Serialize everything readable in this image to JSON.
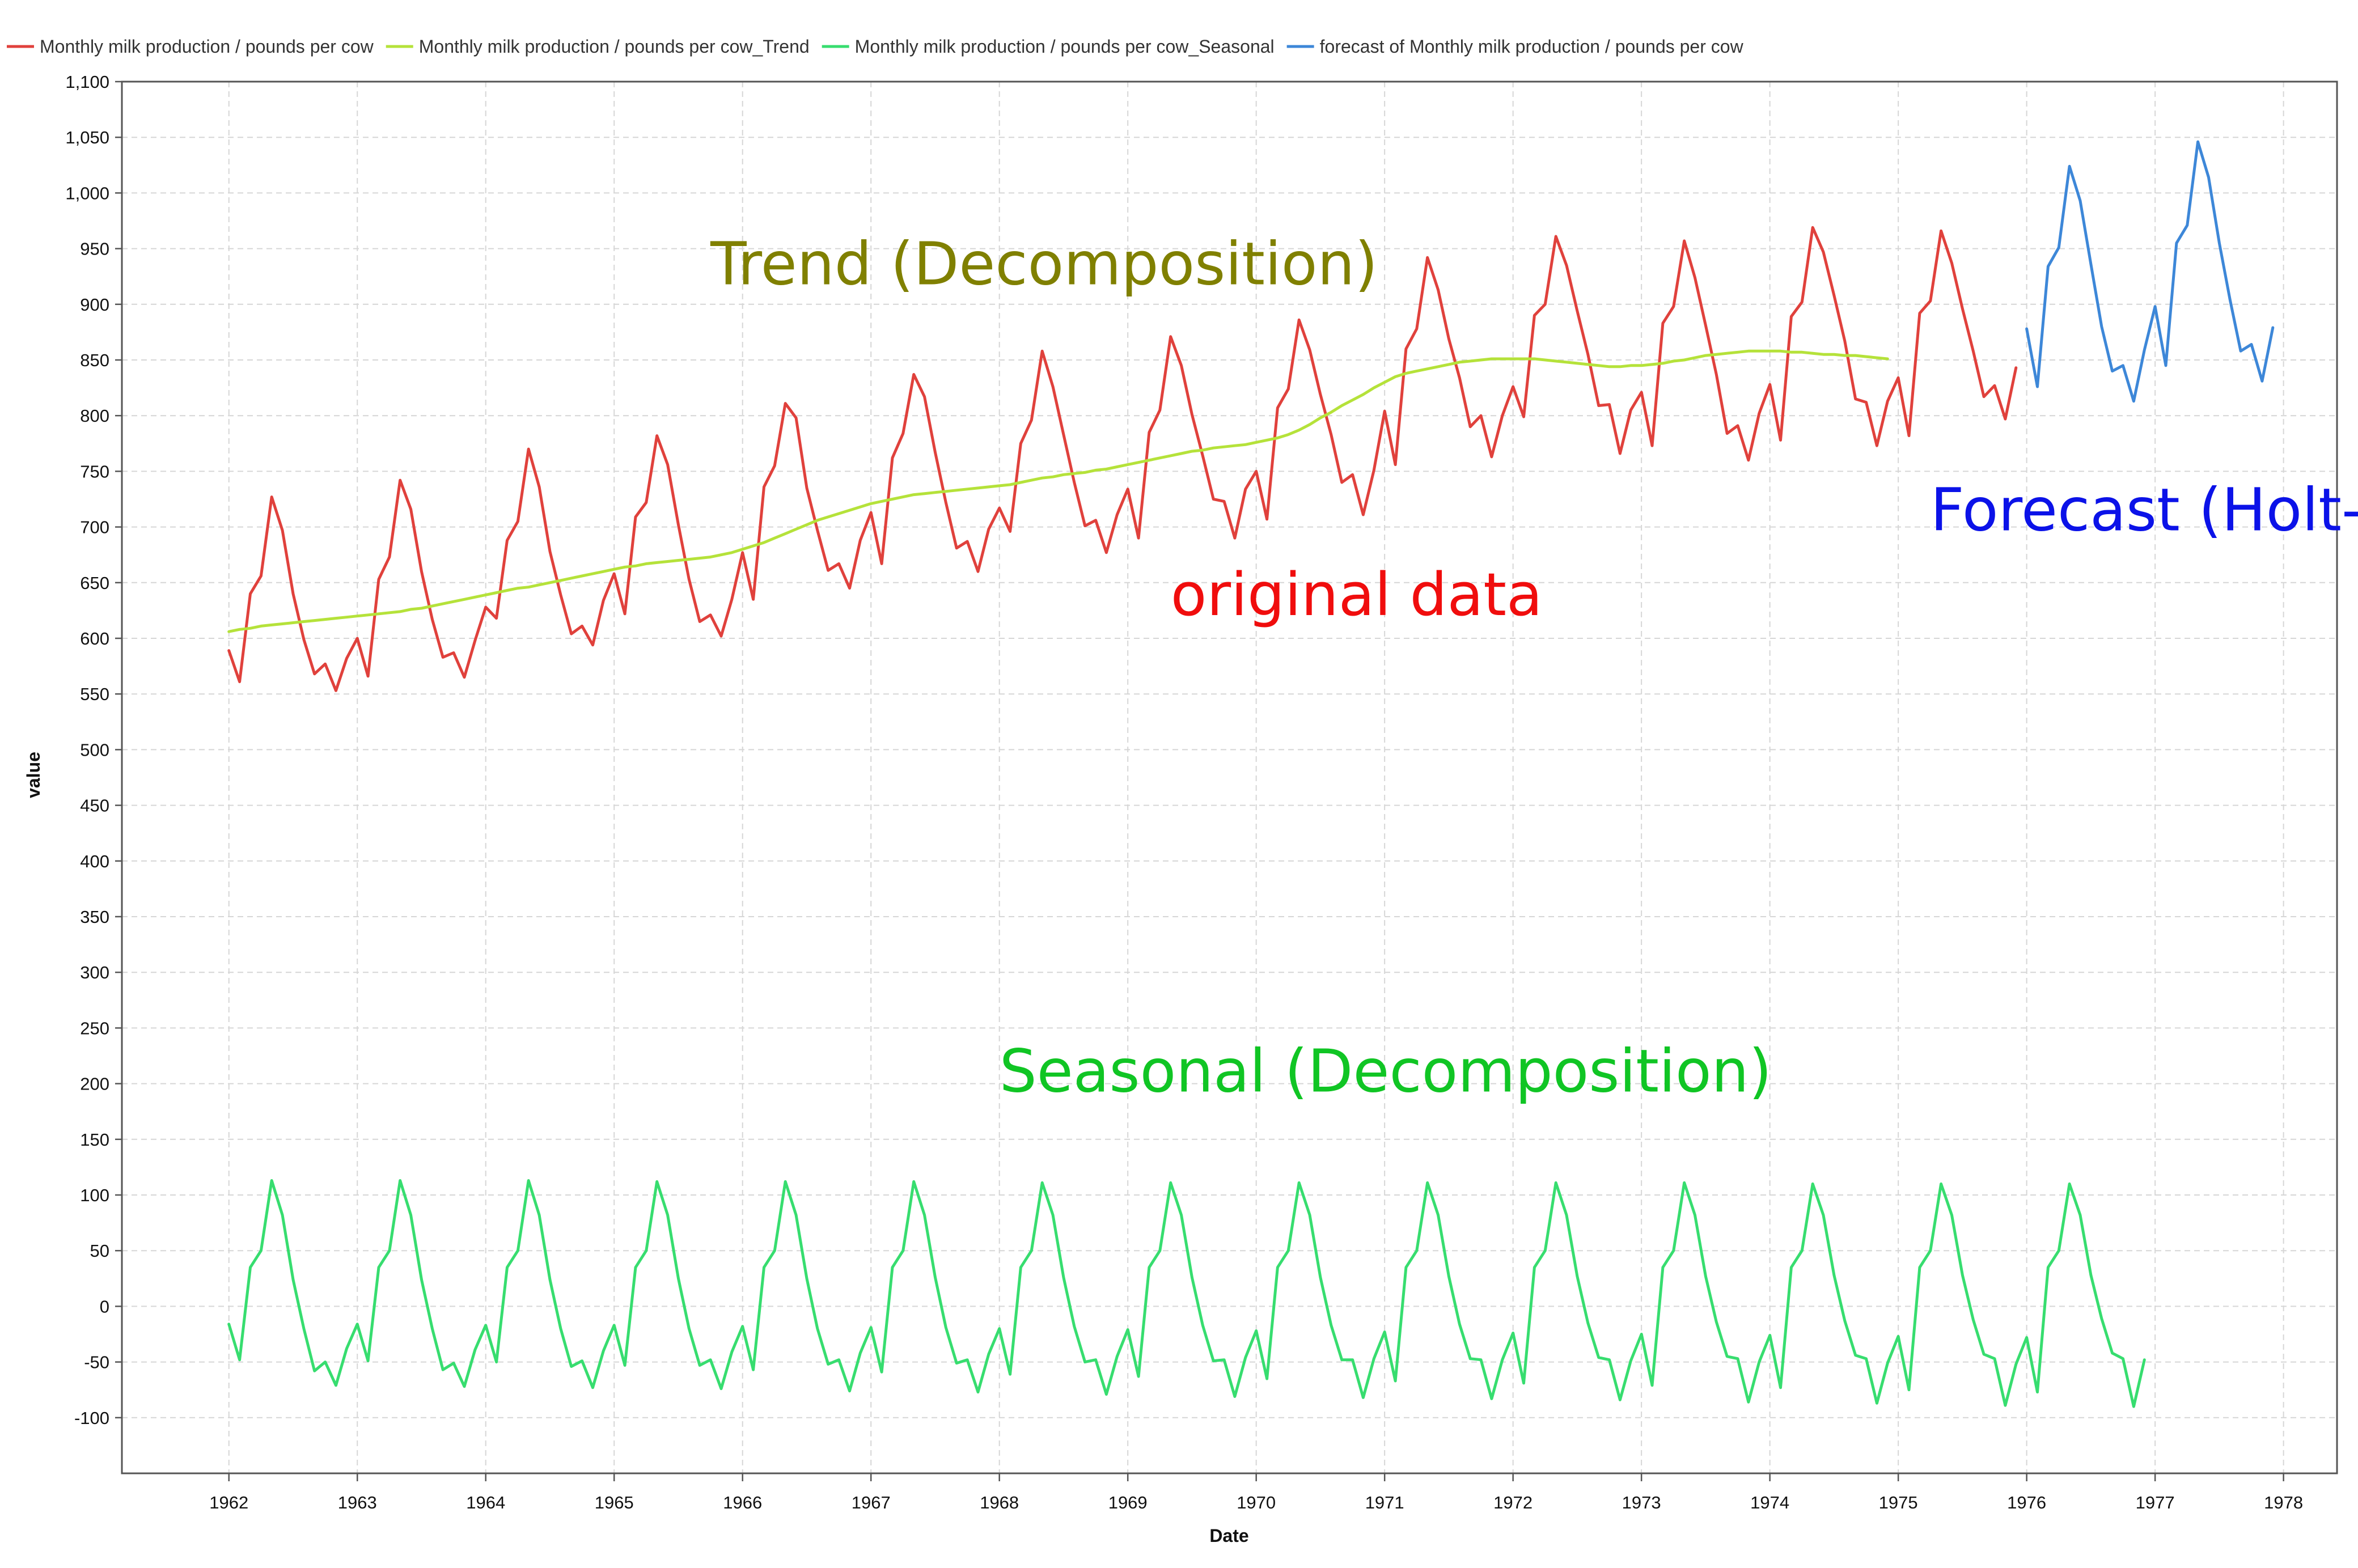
{
  "chart_data": {
    "type": "line",
    "xlabel": "Date",
    "ylabel": "value",
    "xlim": [
      "1961-03",
      "1978-06"
    ],
    "ylim": [
      -150,
      1100
    ],
    "y_ticks": [
      -100,
      -50,
      0,
      50,
      100,
      150,
      200,
      250,
      300,
      350,
      400,
      450,
      500,
      550,
      600,
      650,
      700,
      750,
      800,
      850,
      900,
      950,
      1000,
      1050,
      1100
    ],
    "x_ticks": [
      "1962",
      "1963",
      "1964",
      "1965",
      "1966",
      "1967",
      "1968",
      "1969",
      "1970",
      "1971",
      "1972",
      "1973",
      "1974",
      "1975",
      "1976",
      "1977",
      "1978"
    ],
    "grid": true,
    "legend_position": "top-left",
    "series": [
      {
        "name": "Monthly milk production / pounds per cow",
        "color": "#e0413c",
        "start": "1962-01",
        "frequency": "monthly",
        "values": [
          589,
          561,
          640,
          656,
          727,
          697,
          640,
          599,
          568,
          577,
          553,
          582,
          600,
          566,
          653,
          673,
          742,
          716,
          660,
          617,
          583,
          587,
          565,
          598,
          628,
          618,
          688,
          705,
          770,
          736,
          678,
          639,
          604,
          611,
          594,
          634,
          658,
          622,
          709,
          722,
          782,
          756,
          702,
          653,
          615,
          621,
          602,
          635,
          677,
          635,
          736,
          755,
          811,
          798,
          735,
          697,
          661,
          667,
          645,
          688,
          713,
          667,
          762,
          784,
          837,
          817,
          767,
          722,
          681,
          687,
          660,
          698,
          717,
          696,
          775,
          796,
          858,
          826,
          783,
          740,
          701,
          706,
          677,
          711,
          734,
          690,
          785,
          805,
          871,
          845,
          801,
          764,
          725,
          723,
          690,
          734,
          750,
          707,
          807,
          824,
          886,
          859,
          819,
          783,
          740,
          747,
          711,
          751,
          804,
          756,
          860,
          878,
          942,
          913,
          869,
          834,
          790,
          800,
          763,
          800,
          826,
          799,
          890,
          900,
          961,
          935,
          894,
          855,
          809,
          810,
          766,
          805,
          821,
          773,
          883,
          898,
          957,
          924,
          881,
          837,
          784,
          791,
          760,
          802,
          828,
          778,
          889,
          902,
          969,
          947,
          908,
          867,
          815,
          812,
          773,
          813,
          834,
          782,
          892,
          903,
          966,
          937,
          896,
          858,
          817,
          827,
          797,
          843
        ]
      },
      {
        "name": "Monthly milk production / pounds per cow_Trend",
        "color": "#b5e23a",
        "start": "1962-01",
        "frequency": "monthly",
        "values": [
          606,
          608,
          609,
          611,
          612,
          613,
          614,
          615,
          616,
          617,
          618,
          619,
          620,
          621,
          622,
          623,
          624,
          626,
          627,
          629,
          631,
          633,
          635,
          637,
          639,
          641,
          643,
          645,
          646,
          648,
          650,
          652,
          654,
          656,
          658,
          660,
          662,
          664,
          665,
          667,
          668,
          669,
          670,
          671,
          672,
          673,
          675,
          677,
          680,
          683,
          686,
          690,
          694,
          698,
          702,
          706,
          709,
          712,
          715,
          718,
          721,
          723,
          725,
          727,
          729,
          730,
          731,
          732,
          733,
          734,
          735,
          736,
          737,
          738,
          740,
          742,
          744,
          745,
          747,
          748,
          749,
          751,
          752,
          754,
          756,
          758,
          760,
          762,
          764,
          766,
          768,
          769,
          771,
          772,
          773,
          774,
          776,
          778,
          780,
          783,
          787,
          792,
          798,
          803,
          809,
          814,
          819,
          825,
          830,
          835,
          838,
          840,
          842,
          844,
          846,
          848,
          849,
          850,
          851,
          851,
          851,
          851,
          851,
          850,
          849,
          848,
          847,
          846,
          845,
          844,
          844,
          845,
          845,
          846,
          847,
          849,
          850,
          852,
          854,
          855,
          856,
          857,
          858,
          858,
          858,
          858,
          857,
          857,
          856,
          855,
          855,
          854,
          854,
          853,
          852,
          851
        ]
      },
      {
        "name": "Monthly milk production / pounds per cow_Seasonal",
        "color": "#37dd6f",
        "start": "1962-01",
        "frequency": "monthly",
        "values": [
          -16,
          -48,
          35,
          50,
          113,
          82,
          24,
          -20,
          -58,
          -50,
          -71,
          -38,
          -16,
          -49,
          35,
          50,
          113,
          82,
          24,
          -20,
          -57,
          -51,
          -72,
          -39,
          -17,
          -50,
          35,
          50,
          113,
          82,
          24,
          -20,
          -54,
          -49,
          -73,
          -40,
          -17,
          -53,
          35,
          50,
          112,
          82,
          25,
          -20,
          -53,
          -48,
          -74,
          -41,
          -18,
          -57,
          35,
          50,
          112,
          82,
          25,
          -20,
          -52,
          -48,
          -76,
          -42,
          -19,
          -59,
          35,
          50,
          112,
          82,
          26,
          -19,
          -51,
          -48,
          -77,
          -43,
          -20,
          -61,
          35,
          50,
          111,
          82,
          26,
          -18,
          -50,
          -48,
          -79,
          -45,
          -21,
          -63,
          35,
          50,
          111,
          82,
          26,
          -17,
          -49,
          -48,
          -81,
          -46,
          -22,
          -65,
          35,
          50,
          111,
          82,
          26,
          -17,
          -48,
          -48,
          -82,
          -47,
          -23,
          -67,
          35,
          50,
          111,
          82,
          27,
          -16,
          -47,
          -48,
          -83,
          -48,
          -24,
          -69,
          35,
          50,
          111,
          82,
          27,
          -15,
          -46,
          -48,
          -84,
          -49,
          -25,
          -71,
          35,
          50,
          111,
          82,
          27,
          -14,
          -45,
          -47,
          -86,
          -50,
          -26,
          -73,
          35,
          50,
          110,
          82,
          28,
          -13,
          -44,
          -47,
          -87,
          -51,
          -27,
          -75,
          35,
          50,
          110,
          82,
          28,
          -12,
          -43,
          -47,
          -89,
          -52,
          -28,
          -77,
          35,
          50,
          110,
          82,
          28,
          -11,
          -42,
          -47,
          -90,
          -48
        ]
      },
      {
        "name": "forecast of Monthly milk production / pounds per cow",
        "color": "#3d87d8",
        "start": "1976-01",
        "frequency": "monthly",
        "values": [
          878,
          826,
          934,
          951,
          1024,
          993,
          936,
          880,
          840,
          845,
          813,
          859,
          898,
          845,
          955,
          971,
          1046,
          1014,
          955,
          904,
          858,
          864,
          831,
          879
        ]
      }
    ]
  },
  "annotations": [
    {
      "text": "Trend (Decomposition)",
      "color": "#808000",
      "x": "1965-10",
      "y": 918
    },
    {
      "text": "Forecast (Holt-Winters)",
      "color": "#0b12e8",
      "x": "1975-04",
      "y": 697
    },
    {
      "text": "original data",
      "color": "#f00d0d",
      "x": "1969-05",
      "y": 621
    },
    {
      "text": "Seasonal (Decomposition)",
      "color": "#10c524",
      "x": "1968-01",
      "y": 193
    }
  ]
}
